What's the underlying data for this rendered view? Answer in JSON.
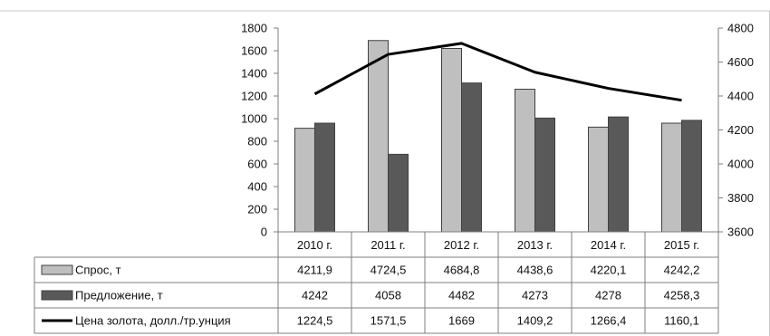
{
  "chart_data": {
    "type": "bar",
    "categories": [
      "2010 г.",
      "2011 г.",
      "2012 г.",
      "2013 г.",
      "2014 г.",
      "2015 г."
    ],
    "series": [
      {
        "name": "Спрос, т",
        "kind": "bar",
        "axis": "left",
        "color": "#bfbfbf",
        "values": [
          915,
          1690,
          1620,
          1260,
          925,
          960
        ],
        "table_values": [
          "4211,9",
          "4724,5",
          "4684,8",
          "4438,6",
          "4220,1",
          "4242,2"
        ]
      },
      {
        "name": "Предложение,  т",
        "kind": "bar",
        "axis": "left",
        "color": "#595959",
        "values": [
          960,
          685,
          1315,
          1005,
          1015,
          985
        ],
        "table_values": [
          "4242",
          "4058",
          "4482",
          "4273",
          "4278",
          "4258,3"
        ]
      },
      {
        "name": "Цена золота, долл./тр.унция",
        "kind": "line",
        "axis": "right",
        "color": "#000000",
        "values": [
          4412,
          4645,
          4710,
          4540,
          4445,
          4375
        ],
        "table_values": [
          "1224,5",
          "1571,5",
          "1669",
          "1409,2",
          "1266,4",
          "1160,1"
        ]
      }
    ],
    "ylim_left": [
      0,
      1800
    ],
    "yticks_left": [
      0,
      200,
      400,
      600,
      800,
      1000,
      1200,
      1400,
      1600,
      1800
    ],
    "ylim_right": [
      3600,
      4800
    ],
    "yticks_right": [
      3600,
      3800,
      4000,
      4200,
      4400,
      4600,
      4800
    ],
    "legend": "table-left",
    "grid": false
  }
}
